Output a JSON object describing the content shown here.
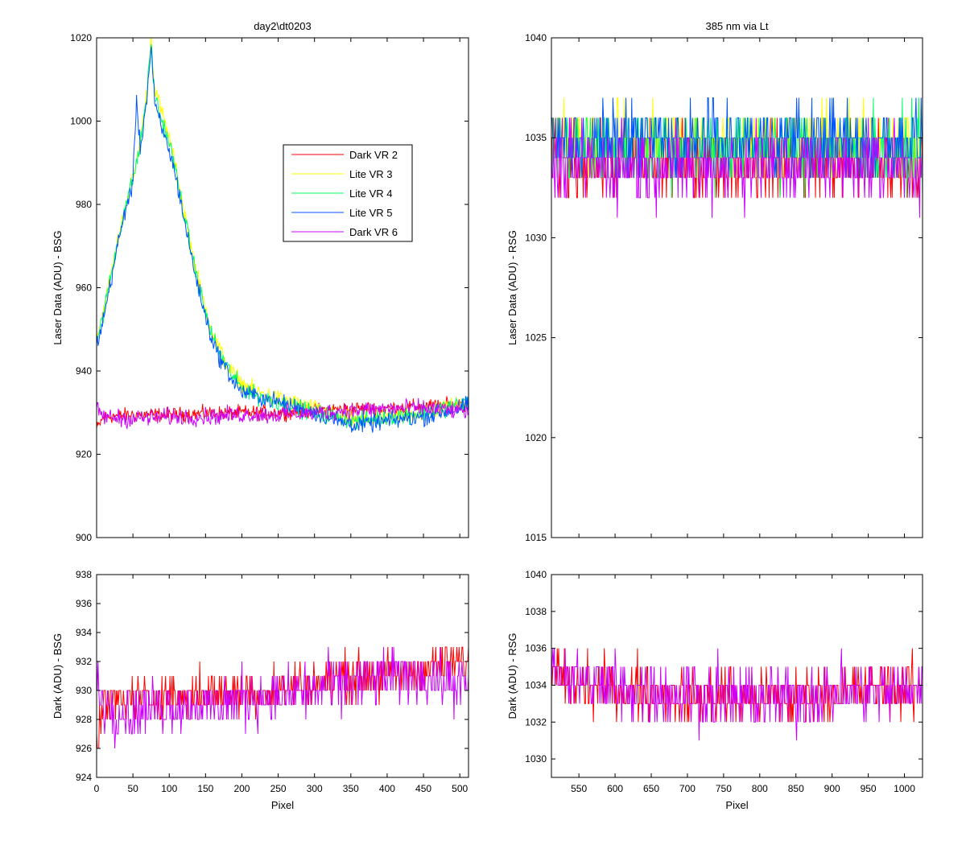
{
  "chart_data": [
    {
      "id": "tl",
      "type": "line",
      "title": "day2\\dt0203",
      "xlabel": "",
      "ylabel": "Laser Data (ADU) - BSG",
      "xlim": [
        0,
        512
      ],
      "ylim": [
        900,
        1020
      ],
      "xticks": [
        0,
        50,
        100,
        150,
        200,
        250,
        300,
        350,
        400,
        450,
        500
      ],
      "yticks": [
        900,
        920,
        940,
        960,
        980,
        1000,
        1020
      ],
      "show_xtick_labels": false,
      "legend": {
        "position": "upper-center",
        "entries": [
          "Dark VR 2",
          "Lite VR 3",
          "Lite VR 4",
          "Lite VR 5",
          "Dark VR 6"
        ]
      },
      "series": [
        {
          "name": "Dark VR 2",
          "color": "#ff0000",
          "x": [
            0,
            10,
            50,
            100,
            150,
            200,
            250,
            300,
            350,
            400,
            450,
            500,
            512
          ],
          "y": [
            926,
            929,
            929.5,
            929.5,
            929.8,
            930,
            930,
            930.5,
            931,
            931,
            931.5,
            932,
            932
          ],
          "noise": 1.5
        },
        {
          "name": "Lite VR 3",
          "color": "#ffff00",
          "x": [
            0,
            10,
            20,
            30,
            40,
            50,
            60,
            70,
            75,
            80,
            90,
            100,
            110,
            120,
            130,
            140,
            150,
            160,
            170,
            180,
            190,
            200,
            220,
            240,
            260,
            280,
            300,
            330,
            360,
            400,
            450,
            500,
            512
          ],
          "y": [
            948,
            955,
            963,
            972,
            980,
            986,
            995,
            1008,
            1020,
            1008,
            1002,
            996,
            988,
            979,
            970,
            962,
            955,
            949,
            945,
            941,
            939,
            937,
            935,
            934,
            933,
            932,
            931,
            929,
            928,
            929,
            930,
            932,
            933
          ],
          "noise": 1.8
        },
        {
          "name": "Lite VR 4",
          "color": "#00ff66",
          "x": [
            0,
            10,
            20,
            30,
            40,
            50,
            60,
            70,
            75,
            80,
            90,
            100,
            110,
            120,
            130,
            140,
            150,
            160,
            170,
            180,
            190,
            200,
            220,
            240,
            260,
            280,
            300,
            330,
            360,
            400,
            450,
            500,
            512
          ],
          "y": [
            947,
            954,
            963,
            972,
            980,
            986,
            994,
            1008,
            1019,
            1006,
            1000,
            995,
            987,
            978,
            969,
            961,
            954,
            948,
            944,
            941,
            938,
            936,
            934,
            933,
            932,
            931,
            930,
            929,
            928,
            929,
            930,
            932,
            933
          ],
          "noise": 1.8
        },
        {
          "name": "Lite VR 5",
          "color": "#0055ff",
          "x": [
            0,
            10,
            20,
            30,
            40,
            50,
            55,
            60,
            70,
            75,
            80,
            90,
            100,
            110,
            120,
            130,
            140,
            150,
            160,
            170,
            180,
            190,
            200,
            220,
            240,
            260,
            280,
            300,
            330,
            360,
            400,
            450,
            500,
            512
          ],
          "y": [
            946,
            953,
            962,
            971,
            979,
            985,
            1006,
            993,
            1007,
            1018,
            1004,
            998,
            993,
            986,
            977,
            968,
            960,
            953,
            947,
            943,
            940,
            937,
            935,
            934,
            933,
            932,
            931,
            930,
            928,
            927,
            928,
            929,
            931,
            932
          ],
          "noise": 1.8
        },
        {
          "name": "Dark VR 6",
          "color": "#cc00ff",
          "x": [
            0,
            10,
            50,
            100,
            150,
            200,
            250,
            300,
            350,
            400,
            450,
            500,
            512
          ],
          "y": [
            931,
            929,
            928.5,
            929,
            929,
            929.5,
            929.5,
            930,
            930.5,
            931,
            931,
            930.5,
            930
          ],
          "noise": 1.8
        }
      ]
    },
    {
      "id": "tr",
      "type": "line",
      "title": "385 nm via Lt",
      "xlabel": "",
      "ylabel": "Laser Data (ADU) - RSG",
      "xlim": [
        512,
        1025
      ],
      "ylim": [
        1015,
        1040
      ],
      "xticks": [
        550,
        600,
        650,
        700,
        750,
        800,
        850,
        900,
        950,
        1000
      ],
      "yticks": [
        1015,
        1020,
        1025,
        1030,
        1035,
        1040
      ],
      "show_xtick_labels": false,
      "series": [
        {
          "name": "Dark VR 2",
          "color": "#ff0000",
          "x": [
            512,
            1025
          ],
          "y": [
            1033.8,
            1033.8
          ],
          "noise": 1.6,
          "step": 1
        },
        {
          "name": "Lite VR 3",
          "color": "#ffff00",
          "x": [
            512,
            1025
          ],
          "y": [
            1034.8,
            1034.8
          ],
          "noise": 1.6,
          "step": 1
        },
        {
          "name": "Lite VR 4",
          "color": "#00ff66",
          "x": [
            512,
            1025
          ],
          "y": [
            1034.5,
            1034.5
          ],
          "noise": 1.6,
          "step": 1
        },
        {
          "name": "Lite VR 5",
          "color": "#0055ff",
          "x": [
            512,
            1025
          ],
          "y": [
            1034.8,
            1034.8
          ],
          "noise": 1.6,
          "step": 1
        },
        {
          "name": "Dark VR 6",
          "color": "#cc00ff",
          "x": [
            512,
            1025
          ],
          "y": [
            1033.6,
            1033.6
          ],
          "noise": 1.6,
          "step": 1
        }
      ]
    },
    {
      "id": "bl",
      "type": "line",
      "title": "",
      "xlabel": "Pixel",
      "ylabel": "Dark (ADU) - BSG",
      "xlim": [
        0,
        512
      ],
      "ylim": [
        924,
        938
      ],
      "xticks": [
        0,
        50,
        100,
        150,
        200,
        250,
        300,
        350,
        400,
        450,
        500
      ],
      "yticks": [
        924,
        926,
        928,
        930,
        932,
        934,
        936,
        938
      ],
      "show_xtick_labels": true,
      "series": [
        {
          "name": "Dark VR 2",
          "color": "#ff0000",
          "x": [
            0,
            10,
            50,
            100,
            150,
            200,
            250,
            300,
            350,
            400,
            450,
            500,
            512
          ],
          "y": [
            926,
            929,
            929.5,
            929.5,
            929.8,
            930,
            930,
            930.5,
            931,
            931,
            931.5,
            932,
            932
          ],
          "noise": 1.3,
          "step": 1
        },
        {
          "name": "Dark VR 6",
          "color": "#cc00ff",
          "x": [
            0,
            10,
            50,
            100,
            150,
            200,
            250,
            300,
            350,
            400,
            450,
            500,
            512
          ],
          "y": [
            931,
            929,
            928.5,
            929,
            929,
            929.5,
            929.5,
            930,
            930.5,
            931,
            931,
            930.5,
            930
          ],
          "noise": 1.6,
          "step": 1
        }
      ]
    },
    {
      "id": "br",
      "type": "line",
      "title": "",
      "xlabel": "Pixel",
      "ylabel": "Dark (ADU) - RSG",
      "xlim": [
        512,
        1025
      ],
      "ylim": [
        1029,
        1040
      ],
      "xticks": [
        550,
        600,
        650,
        700,
        750,
        800,
        850,
        900,
        950,
        1000
      ],
      "yticks": [
        1030,
        1032,
        1034,
        1036,
        1038,
        1040
      ],
      "show_xtick_labels": true,
      "series": [
        {
          "name": "Dark VR 2",
          "color": "#ff0000",
          "x": [
            512,
            530,
            600,
            700,
            800,
            900,
            1000,
            1025
          ],
          "y": [
            1035,
            1034.2,
            1033.8,
            1033.5,
            1033.3,
            1033.6,
            1033.8,
            1034
          ],
          "noise": 1.3,
          "step": 1
        },
        {
          "name": "Dark VR 6",
          "color": "#cc00ff",
          "x": [
            512,
            530,
            600,
            700,
            800,
            900,
            1000,
            1025
          ],
          "y": [
            1035.5,
            1034.5,
            1033.8,
            1033.6,
            1033.2,
            1033.5,
            1033.8,
            1034
          ],
          "noise": 1.5,
          "step": 1
        }
      ]
    }
  ]
}
